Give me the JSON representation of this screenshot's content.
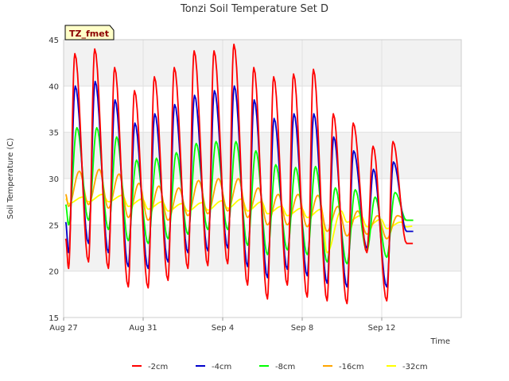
{
  "chart_data": {
    "type": "line",
    "title": "Tonzi Soil Temperature Set D",
    "xlabel": "Time",
    "ylabel": "Soil Temperature (C)",
    "badge": "TZ_fmet",
    "ylim": [
      15,
      45
    ],
    "yticks": [
      15,
      20,
      25,
      30,
      35,
      40,
      45
    ],
    "xlim": [
      "2024-08-27T00:00",
      "2024-09-16T00:00"
    ],
    "xticks": [
      {
        "x": "2024-08-27",
        "label": "Aug 27"
      },
      {
        "x": "2024-08-31",
        "label": "Aug 31"
      },
      {
        "x": "2024-09-04",
        "label": "Sep 4"
      },
      {
        "x": "2024-09-08",
        "label": "Sep 8"
      },
      {
        "x": "2024-09-12",
        "label": "Sep 12"
      }
    ],
    "grid": true,
    "legend_position": "bottom",
    "series": [
      {
        "name": "-2cm",
        "color": "#ff0000",
        "peak_hour": 13.5,
        "start": 23.5,
        "days": [
          [
            20.3,
            43.5
          ],
          [
            21.0,
            44.0
          ],
          [
            20.3,
            42.0
          ],
          [
            18.3,
            39.5
          ],
          [
            18.2,
            41.0
          ],
          [
            19.0,
            42.0
          ],
          [
            20.3,
            43.8
          ],
          [
            20.6,
            43.8
          ],
          [
            20.8,
            44.5
          ],
          [
            18.5,
            42.0
          ],
          [
            17.0,
            41.0
          ],
          [
            18.5,
            41.3
          ],
          [
            17.2,
            41.8
          ],
          [
            16.8,
            37.0
          ],
          [
            16.5,
            36.0
          ],
          [
            22.0,
            33.5
          ],
          [
            16.8,
            34.0
          ],
          [
            23.0,
            23.0
          ]
        ]
      },
      {
        "name": "-4cm",
        "color": "#0000cc",
        "peak_hour": 14,
        "start": 25.3,
        "days": [
          [
            22.0,
            40.0
          ],
          [
            23.0,
            40.5
          ],
          [
            22.0,
            38.5
          ],
          [
            20.5,
            36.0
          ],
          [
            20.3,
            37.0
          ],
          [
            21.0,
            38.0
          ],
          [
            22.0,
            39.0
          ],
          [
            22.2,
            39.5
          ],
          [
            22.5,
            40.0
          ],
          [
            20.5,
            38.5
          ],
          [
            19.3,
            36.5
          ],
          [
            20.2,
            37.0
          ],
          [
            19.5,
            37.0
          ],
          [
            18.7,
            34.5
          ],
          [
            18.3,
            33.0
          ],
          [
            22.5,
            31.0
          ],
          [
            18.3,
            31.8
          ],
          [
            24.3,
            24.3
          ]
        ]
      },
      {
        "name": "-8cm",
        "color": "#00ff00",
        "peak_hour": 16,
        "start": 27.2,
        "days": [
          [
            25.0,
            35.5
          ],
          [
            25.5,
            35.5
          ],
          [
            24.5,
            34.5
          ],
          [
            23.3,
            32.0
          ],
          [
            23.0,
            32.2
          ],
          [
            23.5,
            32.8
          ],
          [
            24.0,
            33.8
          ],
          [
            24.5,
            34.0
          ],
          [
            24.5,
            34.0
          ],
          [
            22.8,
            33.0
          ],
          [
            21.8,
            31.5
          ],
          [
            22.3,
            31.2
          ],
          [
            21.8,
            31.3
          ],
          [
            21.0,
            29.0
          ],
          [
            20.8,
            28.8
          ],
          [
            22.2,
            28.0
          ],
          [
            21.5,
            28.5
          ],
          [
            25.5,
            25.5
          ]
        ]
      },
      {
        "name": "-16cm",
        "color": "#ffa500",
        "peak_hour": 19,
        "start": 28.3,
        "days": [
          [
            27.0,
            30.8
          ],
          [
            27.2,
            31.0
          ],
          [
            26.8,
            30.5
          ],
          [
            25.8,
            29.5
          ],
          [
            25.5,
            29.2
          ],
          [
            25.5,
            29.0
          ],
          [
            26.0,
            29.8
          ],
          [
            26.2,
            30.0
          ],
          [
            26.5,
            30.0
          ],
          [
            25.8,
            29.0
          ],
          [
            25.0,
            28.3
          ],
          [
            25.0,
            28.3
          ],
          [
            24.8,
            28.2
          ],
          [
            24.3,
            27.0
          ],
          [
            23.8,
            26.5
          ],
          [
            24.0,
            26.0
          ],
          [
            23.5,
            26.0
          ],
          [
            25.5,
            25.5
          ]
        ]
      },
      {
        "name": "-32cm",
        "color": "#ffff00",
        "peak_hour": 23,
        "start": 27.8,
        "days": [
          [
            27.3,
            28.0
          ],
          [
            27.5,
            28.3
          ],
          [
            27.5,
            28.2
          ],
          [
            27.0,
            27.8
          ],
          [
            26.7,
            27.5
          ],
          [
            26.5,
            27.3
          ],
          [
            26.5,
            27.4
          ],
          [
            26.6,
            27.6
          ],
          [
            26.8,
            27.8
          ],
          [
            26.5,
            27.5
          ],
          [
            26.2,
            27.0
          ],
          [
            26.0,
            26.8
          ],
          [
            25.8,
            26.7
          ],
          [
            22.0,
            26.5
          ],
          [
            25.3,
            26.0
          ],
          [
            24.8,
            25.6
          ],
          [
            24.6,
            25.3
          ],
          [
            24.8,
            25.0
          ]
        ]
      }
    ]
  }
}
